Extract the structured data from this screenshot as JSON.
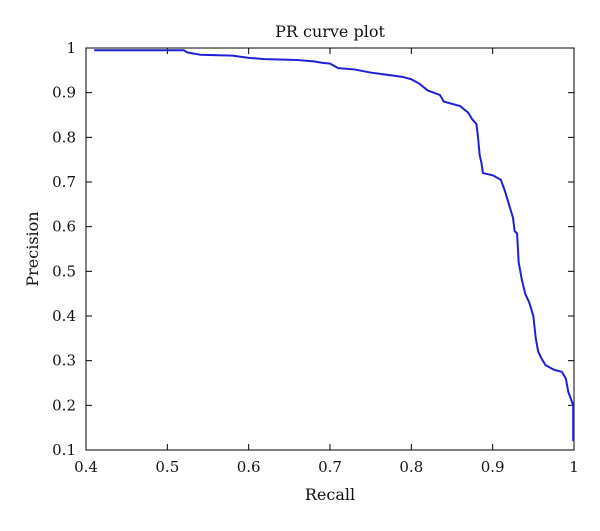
{
  "chart_data": {
    "type": "line",
    "title": "PR curve plot",
    "xlabel": "Recall",
    "ylabel": "Precision",
    "xlim": [
      0.4,
      1.0
    ],
    "ylim": [
      0.1,
      1.0
    ],
    "grid": false,
    "xticks": [
      "0.4",
      "0.5",
      "0.6",
      "0.7",
      "0.8",
      "0.9",
      "1"
    ],
    "yticks": [
      "0.1",
      "0.2",
      "0.3",
      "0.4",
      "0.5",
      "0.6",
      "0.7",
      "0.8",
      "0.9",
      "1"
    ],
    "series": [
      {
        "color": "#1f1fd6",
        "points": [
          [
            0.41,
            0.995
          ],
          [
            0.52,
            0.995
          ],
          [
            0.525,
            0.99
          ],
          [
            0.54,
            0.985
          ],
          [
            0.58,
            0.983
          ],
          [
            0.6,
            0.978
          ],
          [
            0.62,
            0.975
          ],
          [
            0.66,
            0.973
          ],
          [
            0.68,
            0.97
          ],
          [
            0.69,
            0.967
          ],
          [
            0.7,
            0.965
          ],
          [
            0.71,
            0.955
          ],
          [
            0.73,
            0.952
          ],
          [
            0.75,
            0.945
          ],
          [
            0.77,
            0.94
          ],
          [
            0.79,
            0.935
          ],
          [
            0.8,
            0.93
          ],
          [
            0.81,
            0.92
          ],
          [
            0.82,
            0.905
          ],
          [
            0.835,
            0.895
          ],
          [
            0.84,
            0.88
          ],
          [
            0.86,
            0.87
          ],
          [
            0.87,
            0.855
          ],
          [
            0.875,
            0.84
          ],
          [
            0.88,
            0.83
          ],
          [
            0.882,
            0.8
          ],
          [
            0.884,
            0.76
          ],
          [
            0.886,
            0.745
          ],
          [
            0.888,
            0.72
          ],
          [
            0.9,
            0.715
          ],
          [
            0.905,
            0.71
          ],
          [
            0.91,
            0.705
          ],
          [
            0.915,
            0.68
          ],
          [
            0.92,
            0.65
          ],
          [
            0.925,
            0.62
          ],
          [
            0.927,
            0.59
          ],
          [
            0.93,
            0.585
          ],
          [
            0.932,
            0.52
          ],
          [
            0.936,
            0.48
          ],
          [
            0.94,
            0.45
          ],
          [
            0.945,
            0.43
          ],
          [
            0.95,
            0.4
          ],
          [
            0.953,
            0.35
          ],
          [
            0.956,
            0.32
          ],
          [
            0.96,
            0.305
          ],
          [
            0.965,
            0.29
          ],
          [
            0.975,
            0.28
          ],
          [
            0.985,
            0.275
          ],
          [
            0.99,
            0.26
          ],
          [
            0.993,
            0.23
          ],
          [
            0.997,
            0.21
          ],
          [
            0.999,
            0.2
          ],
          [
            0.999,
            0.12
          ]
        ]
      }
    ]
  }
}
